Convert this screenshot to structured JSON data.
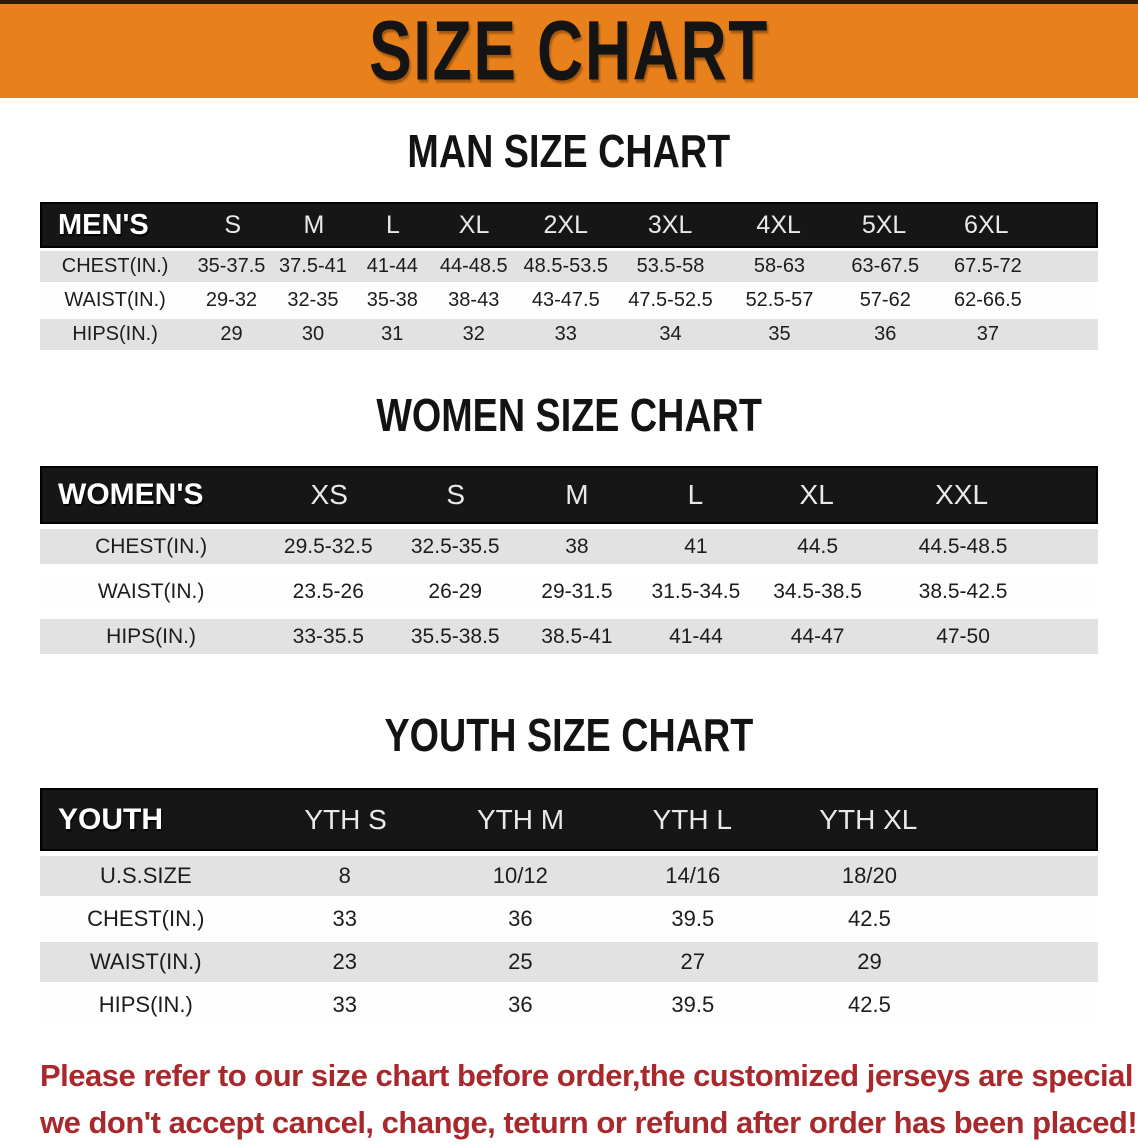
{
  "banner": {
    "title": "SIZE CHART",
    "bg_color": "#e8811b"
  },
  "colors": {
    "banner_orange": "#e8811b",
    "header_band_black": "#161616",
    "row_gray": "#e2e2e2",
    "disclaimer_red": "#a9282c"
  },
  "sections": [
    {
      "heading": "MAN SIZE CHART",
      "table": {
        "corner": "MEN'S",
        "columns": [
          "S",
          "M",
          "L",
          "XL",
          "2XL",
          "3XL",
          "4XL",
          "5XL",
          "6XL"
        ],
        "rows": [
          {
            "label": "CHEST(IN.)",
            "values": [
              "35-37.5",
              "37.5-41",
              "41-44",
              "44-48.5",
              "48.5-53.5",
              "53.5-58",
              "58-63",
              "63-67.5",
              "67.5-72"
            ]
          },
          {
            "label": "WAIST(IN.)",
            "values": [
              "29-32",
              "32-35",
              "35-38",
              "38-43",
              "43-47.5",
              "47.5-52.5",
              "52.5-57",
              "57-62",
              "62-66.5"
            ]
          },
          {
            "label": "HIPS(IN.)",
            "values": [
              "29",
              "30",
              "31",
              "32",
              "33",
              "34",
              "35",
              "36",
              "37"
            ]
          }
        ]
      }
    },
    {
      "heading": "WOMEN SIZE CHART",
      "table": {
        "corner": "WOMEN'S",
        "columns": [
          "XS",
          "S",
          "M",
          "L",
          "XL",
          "XXL"
        ],
        "rows": [
          {
            "label": "CHEST(IN.)",
            "values": [
              "29.5-32.5",
              "32.5-35.5",
              "38",
              "41",
              "44.5",
              "44.5-48.5"
            ]
          },
          {
            "label": "WAIST(IN.)",
            "values": [
              "23.5-26",
              "26-29",
              "29-31.5",
              "31.5-34.5",
              "34.5-38.5",
              "38.5-42.5"
            ]
          },
          {
            "label": "HIPS(IN.)",
            "values": [
              "33-35.5",
              "35.5-38.5",
              "38.5-41",
              "41-44",
              "44-47",
              "47-50"
            ]
          }
        ]
      }
    },
    {
      "heading": "YOUTH SIZE CHART",
      "table": {
        "corner": "YOUTH",
        "columns": [
          "YTH S",
          "YTH M",
          "YTH L",
          "YTH XL"
        ],
        "rows": [
          {
            "label": "U.S.SIZE",
            "values": [
              "8",
              "10/12",
              "14/16",
              "18/20"
            ]
          },
          {
            "label": "CHEST(IN.)",
            "values": [
              "33",
              "36",
              "39.5",
              "42.5"
            ]
          },
          {
            "label": "WAIST(IN.)",
            "values": [
              "23",
              "25",
              "27",
              "29"
            ]
          },
          {
            "label": "HIPS(IN.)",
            "values": [
              "33",
              "36",
              "39.5",
              "42.5"
            ]
          }
        ]
      }
    }
  ],
  "disclaimer": {
    "line1": "Please refer to our size chart before order,the customized jerseys are special products,",
    "line2": "we don't accept cancel, change, teturn or refund after order has been placed!"
  }
}
